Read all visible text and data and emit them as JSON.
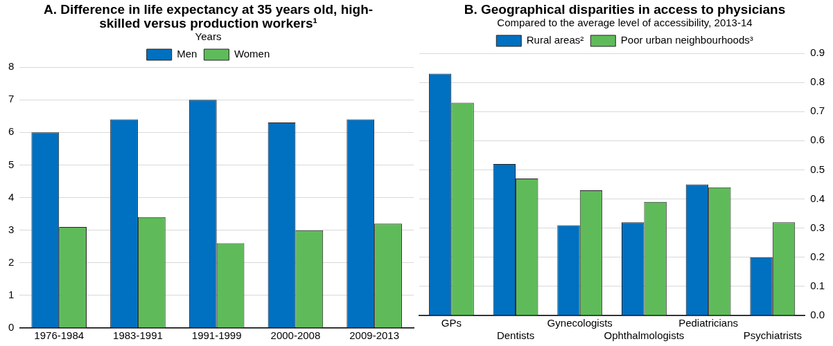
{
  "chart_data": [
    {
      "type": "bar",
      "title": "A. Difference in life expectancy at 35 years old, high-skilled versus production workers¹",
      "subtitle": "Years",
      "categories": [
        "1976-1984",
        "1983-1991",
        "1991-1999",
        "2000-2008",
        "2009-2013"
      ],
      "series": [
        {
          "name": "Men",
          "color": "#0070c0",
          "values": [
            6.0,
            6.4,
            7.0,
            6.3,
            6.4
          ]
        },
        {
          "name": "Women",
          "color": "#5fbb5a",
          "values": [
            3.1,
            3.4,
            2.6,
            3.0,
            3.2
          ]
        }
      ],
      "ylim": [
        0,
        8
      ],
      "yticks": [
        0,
        1,
        2,
        3,
        4,
        5,
        6,
        7,
        8
      ],
      "grid": "y",
      "legend": "top"
    },
    {
      "type": "bar",
      "title": "B. Geographical disparities in access to physicians",
      "subtitle": "Compared to the average level of accessibility, 2013-14",
      "categories": [
        "GPs",
        "Dentists",
        "Gynecologists",
        "Ophthalmologists",
        "Pediatricians",
        "Psychiatrists"
      ],
      "series": [
        {
          "name": "Rural areas²",
          "color": "#0070c0",
          "values": [
            0.83,
            0.52,
            0.31,
            0.32,
            0.45,
            0.2
          ]
        },
        {
          "name": "Poor urban neighbourhoods³",
          "color": "#5fbb5a",
          "values": [
            0.73,
            0.47,
            0.43,
            0.39,
            0.44,
            0.32
          ]
        }
      ],
      "ylim": [
        0,
        0.9
      ],
      "yticks": [
        {
          "value": 0,
          "label": "0.0"
        },
        0.1,
        0.2,
        0.3,
        0.4,
        0.5,
        0.6,
        0.7,
        0.8,
        0.9
      ],
      "grid": "y",
      "legend": "top"
    }
  ]
}
